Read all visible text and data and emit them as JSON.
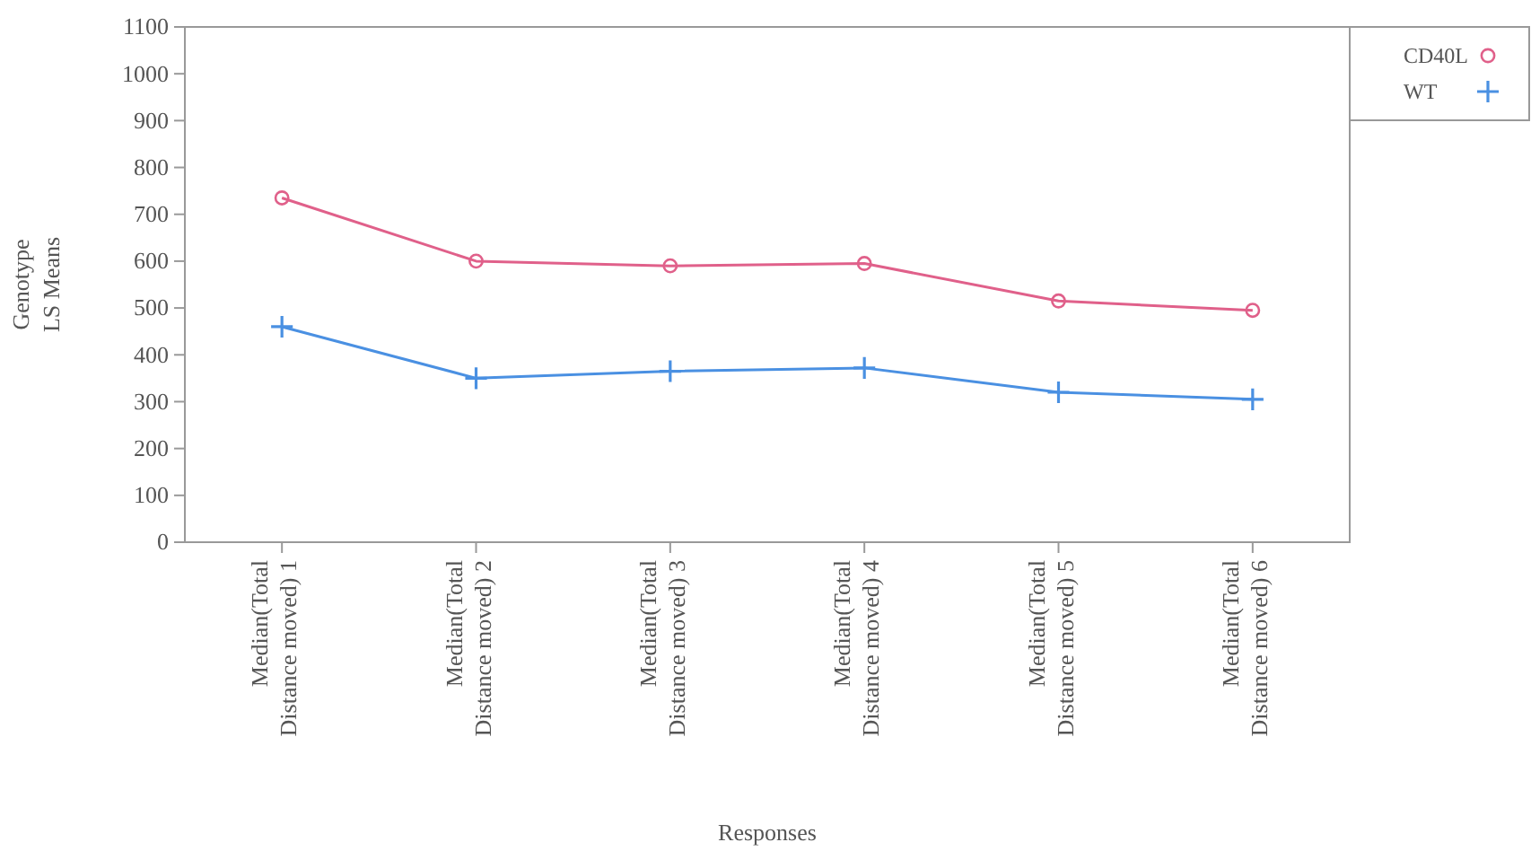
{
  "chart_data": {
    "type": "line",
    "xlabel": "Responses",
    "ylabel": "Genotype\nLS Means",
    "categories": [
      "Median(Total Distance moved) 1",
      "Median(Total Distance moved) 2",
      "Median(Total Distance moved) 3",
      "Median(Total Distance moved) 4",
      "Median(Total Distance moved) 5",
      "Median(Total Distance moved) 6"
    ],
    "series": [
      {
        "name": "CD40L",
        "color": "#e0608a",
        "marker": "circle",
        "values": [
          735,
          600,
          590,
          595,
          515,
          495
        ]
      },
      {
        "name": "WT",
        "color": "#4a90e2",
        "marker": "cross",
        "values": [
          460,
          350,
          365,
          372,
          320,
          305
        ]
      }
    ],
    "ylim": [
      0,
      1100
    ],
    "yticks": [
      0,
      100,
      200,
      300,
      400,
      500,
      600,
      700,
      800,
      900,
      1000,
      1100
    ],
    "legend": "top right",
    "grid": false
  }
}
